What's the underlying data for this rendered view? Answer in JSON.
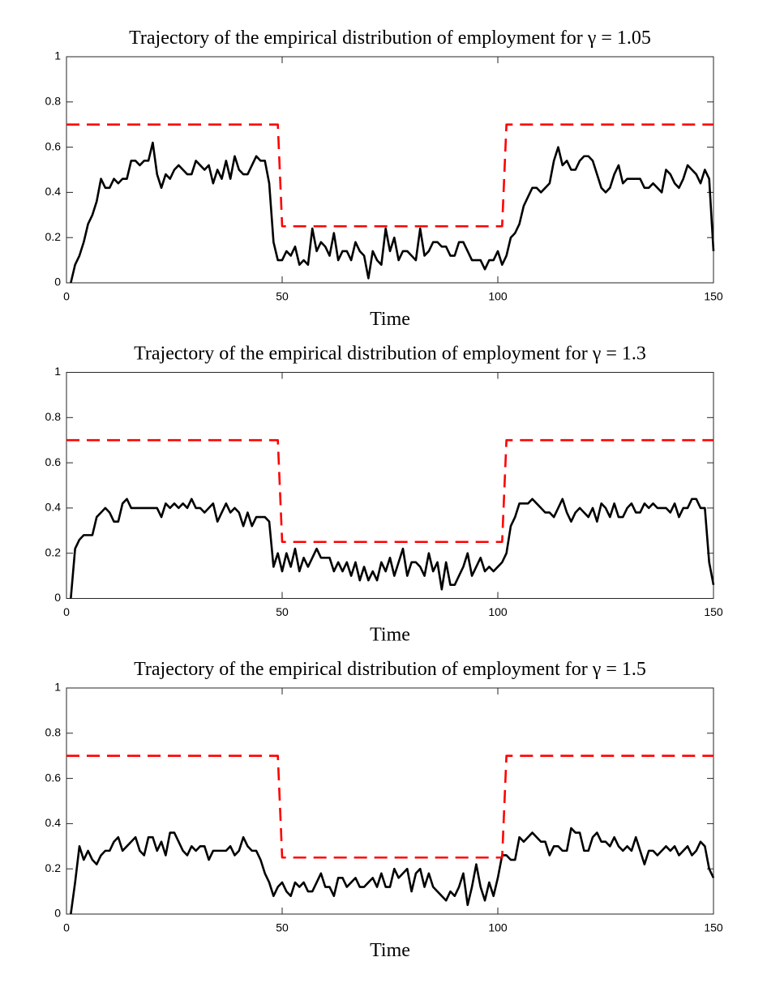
{
  "chart_data": [
    {
      "type": "line",
      "title": "Trajectory of the empirical distribution of employment for γ = 1.05",
      "xlabel": "Time",
      "xlim": [
        0,
        150
      ],
      "xticks": [
        0,
        50,
        100,
        150
      ],
      "ylim": [
        0,
        1
      ],
      "yticks": [
        0,
        0.2,
        0.4,
        0.6,
        0.8,
        1
      ],
      "series": [
        {
          "color": "#000000",
          "dash": false,
          "x": [
            1,
            2,
            3,
            4,
            5,
            6,
            7,
            8,
            9,
            10,
            11,
            12,
            13,
            14,
            15,
            16,
            17,
            18,
            19,
            20,
            21,
            22,
            23,
            24,
            25,
            26,
            27,
            28,
            29,
            30,
            31,
            32,
            33,
            34,
            35,
            36,
            37,
            38,
            39,
            40,
            41,
            42,
            43,
            44,
            45,
            46,
            47,
            48,
            49,
            50,
            51,
            52,
            53,
            54,
            55,
            56,
            57,
            58,
            59,
            60,
            61,
            62,
            63,
            64,
            65,
            66,
            67,
            68,
            69,
            70,
            71,
            72,
            73,
            74,
            75,
            76,
            77,
            78,
            79,
            80,
            81,
            82,
            83,
            84,
            85,
            86,
            87,
            88,
            89,
            90,
            91,
            92,
            93,
            94,
            95,
            96,
            97,
            98,
            99,
            100,
            101,
            102,
            103,
            104,
            105,
            106,
            107,
            108,
            109,
            110,
            111,
            112,
            113,
            114,
            115,
            116,
            117,
            118,
            119,
            120,
            121,
            122,
            123,
            124,
            125,
            126,
            127,
            128,
            129,
            130,
            131,
            132,
            133,
            134,
            135,
            136,
            137,
            138,
            139,
            140,
            141,
            142,
            143,
            144,
            145,
            146,
            147,
            148,
            149,
            150
          ],
          "values": [
            0,
            0.08,
            0.12,
            0.18,
            0.26,
            0.3,
            0.36,
            0.46,
            0.42,
            0.42,
            0.46,
            0.44,
            0.46,
            0.46,
            0.54,
            0.54,
            0.52,
            0.54,
            0.54,
            0.62,
            0.48,
            0.42,
            0.48,
            0.46,
            0.5,
            0.52,
            0.5,
            0.48,
            0.48,
            0.54,
            0.52,
            0.5,
            0.52,
            0.44,
            0.5,
            0.46,
            0.54,
            0.46,
            0.56,
            0.5,
            0.48,
            0.48,
            0.52,
            0.56,
            0.54,
            0.54,
            0.44,
            0.18,
            0.1,
            0.1,
            0.14,
            0.12,
            0.16,
            0.08,
            0.1,
            0.08,
            0.24,
            0.14,
            0.18,
            0.16,
            0.12,
            0.22,
            0.1,
            0.14,
            0.14,
            0.1,
            0.18,
            0.14,
            0.12,
            0.02,
            0.14,
            0.1,
            0.08,
            0.24,
            0.14,
            0.2,
            0.1,
            0.14,
            0.14,
            0.12,
            0.1,
            0.24,
            0.12,
            0.14,
            0.18,
            0.18,
            0.16,
            0.16,
            0.12,
            0.12,
            0.18,
            0.18,
            0.14,
            0.1,
            0.1,
            0.1,
            0.06,
            0.1,
            0.1,
            0.14,
            0.08,
            0.12,
            0.2,
            0.22,
            0.26,
            0.34,
            0.38,
            0.42,
            0.42,
            0.4,
            0.42,
            0.44,
            0.54,
            0.6,
            0.52,
            0.54,
            0.5,
            0.5,
            0.54,
            0.56,
            0.56,
            0.54,
            0.48,
            0.42,
            0.4,
            0.42,
            0.48,
            0.52,
            0.44,
            0.46,
            0.46,
            0.46,
            0.46,
            0.42,
            0.42,
            0.44,
            0.42,
            0.4,
            0.5,
            0.48,
            0.44,
            0.42,
            0.46,
            0.52,
            0.5,
            0.48,
            0.44,
            0.5,
            0.46,
            0.14
          ]
        },
        {
          "color": "#ff0000",
          "dash": true,
          "x": [
            0,
            49,
            50,
            101,
            102,
            150
          ],
          "values": [
            0.7,
            0.7,
            0.25,
            0.25,
            0.7,
            0.7
          ]
        }
      ]
    },
    {
      "type": "line",
      "title": "Trajectory of the empirical distribution of employment for γ = 1.3",
      "xlabel": "Time",
      "xlim": [
        0,
        150
      ],
      "xticks": [
        0,
        50,
        100,
        150
      ],
      "ylim": [
        0,
        1
      ],
      "yticks": [
        0,
        0.2,
        0.4,
        0.6,
        0.8,
        1
      ],
      "series": [
        {
          "color": "#000000",
          "dash": false,
          "x": [
            1,
            2,
            3,
            4,
            5,
            6,
            7,
            8,
            9,
            10,
            11,
            12,
            13,
            14,
            15,
            16,
            17,
            18,
            19,
            20,
            21,
            22,
            23,
            24,
            25,
            26,
            27,
            28,
            29,
            30,
            31,
            32,
            33,
            34,
            35,
            36,
            37,
            38,
            39,
            40,
            41,
            42,
            43,
            44,
            45,
            46,
            47,
            48,
            49,
            50,
            51,
            52,
            53,
            54,
            55,
            56,
            57,
            58,
            59,
            60,
            61,
            62,
            63,
            64,
            65,
            66,
            67,
            68,
            69,
            70,
            71,
            72,
            73,
            74,
            75,
            76,
            77,
            78,
            79,
            80,
            81,
            82,
            83,
            84,
            85,
            86,
            87,
            88,
            89,
            90,
            91,
            92,
            93,
            94,
            95,
            96,
            97,
            98,
            99,
            100,
            101,
            102,
            103,
            104,
            105,
            106,
            107,
            108,
            109,
            110,
            111,
            112,
            113,
            114,
            115,
            116,
            117,
            118,
            119,
            120,
            121,
            122,
            123,
            124,
            125,
            126,
            127,
            128,
            129,
            130,
            131,
            132,
            133,
            134,
            135,
            136,
            137,
            138,
            139,
            140,
            141,
            142,
            143,
            144,
            145,
            146,
            147,
            148,
            149,
            150
          ],
          "values": [
            0,
            0.22,
            0.26,
            0.28,
            0.28,
            0.28,
            0.36,
            0.38,
            0.4,
            0.38,
            0.34,
            0.34,
            0.42,
            0.44,
            0.4,
            0.4,
            0.4,
            0.4,
            0.4,
            0.4,
            0.4,
            0.36,
            0.42,
            0.4,
            0.42,
            0.4,
            0.42,
            0.4,
            0.44,
            0.4,
            0.4,
            0.38,
            0.4,
            0.42,
            0.34,
            0.38,
            0.42,
            0.38,
            0.4,
            0.38,
            0.32,
            0.38,
            0.32,
            0.36,
            0.36,
            0.36,
            0.34,
            0.14,
            0.2,
            0.12,
            0.2,
            0.14,
            0.22,
            0.12,
            0.18,
            0.14,
            0.18,
            0.22,
            0.18,
            0.18,
            0.18,
            0.12,
            0.16,
            0.12,
            0.16,
            0.1,
            0.16,
            0.08,
            0.14,
            0.08,
            0.12,
            0.08,
            0.16,
            0.12,
            0.18,
            0.1,
            0.16,
            0.22,
            0.1,
            0.16,
            0.16,
            0.14,
            0.1,
            0.2,
            0.12,
            0.16,
            0.04,
            0.16,
            0.06,
            0.06,
            0.1,
            0.14,
            0.2,
            0.1,
            0.14,
            0.18,
            0.12,
            0.14,
            0.12,
            0.14,
            0.16,
            0.2,
            0.32,
            0.36,
            0.42,
            0.42,
            0.42,
            0.44,
            0.42,
            0.4,
            0.38,
            0.38,
            0.36,
            0.4,
            0.44,
            0.38,
            0.34,
            0.38,
            0.4,
            0.38,
            0.36,
            0.4,
            0.34,
            0.42,
            0.4,
            0.36,
            0.42,
            0.36,
            0.36,
            0.4,
            0.42,
            0.38,
            0.38,
            0.42,
            0.4,
            0.42,
            0.4,
            0.4,
            0.4,
            0.38,
            0.42,
            0.36,
            0.4,
            0.4,
            0.44,
            0.44,
            0.4,
            0.4,
            0.16,
            0.06
          ]
        },
        {
          "color": "#ff0000",
          "dash": true,
          "x": [
            0,
            49,
            50,
            101,
            102,
            150
          ],
          "values": [
            0.7,
            0.7,
            0.25,
            0.25,
            0.7,
            0.7
          ]
        }
      ]
    },
    {
      "type": "line",
      "title": "Trajectory of the empirical distribution of employment for γ = 1.5",
      "xlabel": "Time",
      "xlim": [
        0,
        150
      ],
      "xticks": [
        0,
        50,
        100,
        150
      ],
      "ylim": [
        0,
        1
      ],
      "yticks": [
        0,
        0.2,
        0.4,
        0.6,
        0.8,
        1
      ],
      "series": [
        {
          "color": "#000000",
          "dash": false,
          "x": [
            1,
            2,
            3,
            4,
            5,
            6,
            7,
            8,
            9,
            10,
            11,
            12,
            13,
            14,
            15,
            16,
            17,
            18,
            19,
            20,
            21,
            22,
            23,
            24,
            25,
            26,
            27,
            28,
            29,
            30,
            31,
            32,
            33,
            34,
            35,
            36,
            37,
            38,
            39,
            40,
            41,
            42,
            43,
            44,
            45,
            46,
            47,
            48,
            49,
            50,
            51,
            52,
            53,
            54,
            55,
            56,
            57,
            58,
            59,
            60,
            61,
            62,
            63,
            64,
            65,
            66,
            67,
            68,
            69,
            70,
            71,
            72,
            73,
            74,
            75,
            76,
            77,
            78,
            79,
            80,
            81,
            82,
            83,
            84,
            85,
            86,
            87,
            88,
            89,
            90,
            91,
            92,
            93,
            94,
            95,
            96,
            97,
            98,
            99,
            100,
            101,
            102,
            103,
            104,
            105,
            106,
            107,
            108,
            109,
            110,
            111,
            112,
            113,
            114,
            115,
            116,
            117,
            118,
            119,
            120,
            121,
            122,
            123,
            124,
            125,
            126,
            127,
            128,
            129,
            130,
            131,
            132,
            133,
            134,
            135,
            136,
            137,
            138,
            139,
            140,
            141,
            142,
            143,
            144,
            145,
            146,
            147,
            148,
            149,
            150
          ],
          "values": [
            0,
            0.14,
            0.3,
            0.24,
            0.28,
            0.24,
            0.22,
            0.26,
            0.28,
            0.28,
            0.32,
            0.34,
            0.28,
            0.3,
            0.32,
            0.34,
            0.28,
            0.26,
            0.34,
            0.34,
            0.28,
            0.32,
            0.26,
            0.36,
            0.36,
            0.32,
            0.28,
            0.26,
            0.3,
            0.28,
            0.3,
            0.3,
            0.24,
            0.28,
            0.28,
            0.28,
            0.28,
            0.3,
            0.26,
            0.28,
            0.34,
            0.3,
            0.28,
            0.28,
            0.24,
            0.18,
            0.14,
            0.08,
            0.12,
            0.14,
            0.1,
            0.08,
            0.14,
            0.12,
            0.14,
            0.1,
            0.1,
            0.14,
            0.18,
            0.12,
            0.12,
            0.08,
            0.16,
            0.16,
            0.12,
            0.14,
            0.16,
            0.12,
            0.12,
            0.14,
            0.16,
            0.12,
            0.18,
            0.12,
            0.12,
            0.2,
            0.16,
            0.18,
            0.2,
            0.1,
            0.18,
            0.2,
            0.12,
            0.18,
            0.12,
            0.1,
            0.08,
            0.06,
            0.1,
            0.08,
            0.12,
            0.18,
            0.04,
            0.12,
            0.22,
            0.12,
            0.06,
            0.14,
            0.08,
            0.16,
            0.26,
            0.26,
            0.24,
            0.24,
            0.34,
            0.32,
            0.34,
            0.36,
            0.34,
            0.32,
            0.32,
            0.26,
            0.3,
            0.3,
            0.28,
            0.28,
            0.38,
            0.36,
            0.36,
            0.28,
            0.28,
            0.34,
            0.36,
            0.32,
            0.32,
            0.3,
            0.34,
            0.3,
            0.28,
            0.3,
            0.28,
            0.34,
            0.28,
            0.22,
            0.28,
            0.28,
            0.26,
            0.28,
            0.3,
            0.28,
            0.3,
            0.26,
            0.28,
            0.3,
            0.26,
            0.28,
            0.32,
            0.3,
            0.2,
            0.16
          ]
        },
        {
          "color": "#ff0000",
          "dash": true,
          "x": [
            0,
            49,
            50,
            101,
            102,
            150
          ],
          "values": [
            0.7,
            0.7,
            0.25,
            0.25,
            0.7,
            0.7
          ]
        }
      ]
    }
  ]
}
